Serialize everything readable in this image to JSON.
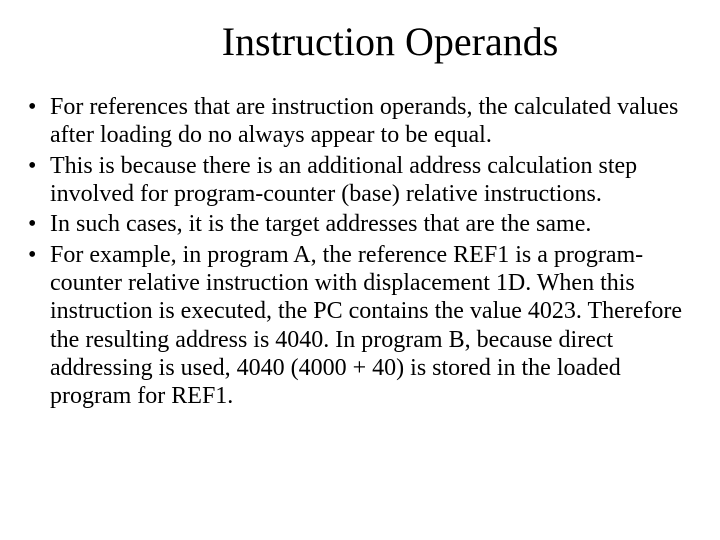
{
  "title": "Instruction Operands",
  "title_fontsize": 40,
  "body_fontsize": 24,
  "text_color": "#000000",
  "background_color": "#ffffff",
  "font_family": "Times New Roman",
  "bullets": [
    "For references that are instruction operands, the calculated values after loading do no always appear to be equal.",
    "This is because there is an additional address calculation step involved for program-counter (base) relative instructions.",
    "In such cases, it is the target addresses that are the same.",
    "For example, in program A, the reference REF1 is a program-counter relative instruction with displacement 1D. When this instruction is executed, the PC contains the value 4023. Therefore the resulting address is 4040. In program B, because direct addressing is used, 4040 (4000 + 40)  is stored in the loaded program for REF1."
  ]
}
